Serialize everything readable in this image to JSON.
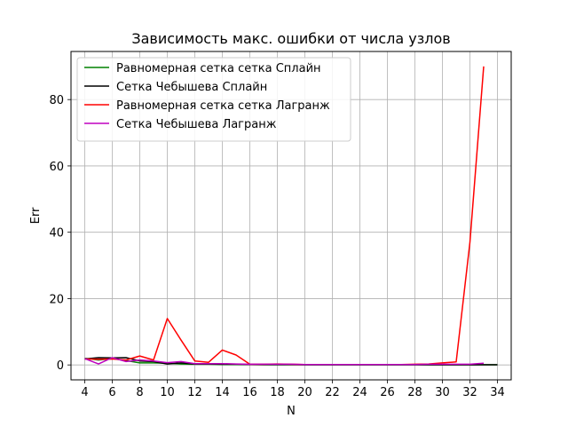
{
  "chart_data": {
    "type": "line",
    "title": "Зависимость макс. ошибки от числа узлов",
    "xlabel": "N",
    "ylabel": "Err",
    "xlim": [
      3,
      35
    ],
    "ylim": [
      -4.5,
      94.5
    ],
    "xticks": [
      4,
      6,
      8,
      10,
      12,
      14,
      16,
      18,
      20,
      22,
      24,
      26,
      28,
      30,
      32,
      34
    ],
    "yticks": [
      0,
      20,
      40,
      60,
      80
    ],
    "grid": true,
    "legend_position": "upper-left",
    "series": [
      {
        "name": "Равномерная сетка сетка Сплайн",
        "color": "#008000",
        "x": [
          4,
          5,
          6,
          7,
          8,
          9,
          10,
          11,
          12,
          13,
          14,
          15,
          16,
          17,
          18,
          19,
          20,
          21,
          22,
          23,
          24,
          25,
          26,
          27,
          28,
          29,
          30,
          31,
          32,
          33,
          34
        ],
        "y": [
          2.0,
          1.5,
          1.9,
          1.3,
          0.6,
          0.6,
          0.5,
          0.3,
          0.2,
          0.2,
          0.1,
          0.1,
          0.1,
          0.05,
          0.05,
          0.05,
          0.05,
          0.05,
          0.05,
          0.05,
          0.05,
          0.05,
          0.05,
          0.05,
          0.05,
          0.05,
          0.05,
          0.05,
          0.05,
          0.05,
          0.05
        ]
      },
      {
        "name": "Сетка Чебышева Сплайн",
        "color": "#000000",
        "x": [
          4,
          5,
          6,
          7,
          8,
          9,
          10,
          11,
          12,
          13,
          14,
          15,
          16,
          17,
          18,
          19,
          20,
          21,
          22,
          23,
          24,
          25,
          26,
          27,
          28,
          29,
          30,
          31,
          32,
          33,
          34
        ],
        "y": [
          1.8,
          2.2,
          2.1,
          2.2,
          1.2,
          1.0,
          0.3,
          0.6,
          0.3,
          0.3,
          0.2,
          0.2,
          0.1,
          0.1,
          0.1,
          0.1,
          0.05,
          0.05,
          0.05,
          0.05,
          0.05,
          0.05,
          0.05,
          0.05,
          0.05,
          0.05,
          0.05,
          0.05,
          0.05,
          0.05,
          0.05
        ]
      },
      {
        "name": "Равномерная сетка сетка Лагранж",
        "color": "#ff0000",
        "x": [
          4,
          5,
          6,
          7,
          8,
          9,
          10,
          11,
          12,
          13,
          14,
          15,
          16,
          17,
          18,
          19,
          20,
          21,
          22,
          23,
          24,
          25,
          26,
          27,
          28,
          29,
          30,
          31,
          32,
          33
        ],
        "y": [
          1.8,
          1.7,
          1.8,
          1.5,
          2.7,
          1.5,
          14.0,
          7.5,
          1.2,
          0.8,
          4.5,
          3.0,
          0.2,
          0.2,
          0.3,
          0.2,
          0.1,
          0.1,
          0.1,
          0.1,
          0.1,
          0.1,
          0.1,
          0.1,
          0.2,
          0.3,
          0.6,
          0.9,
          37.0,
          90.0
        ]
      },
      {
        "name": "Сетка Чебышева Лагранж",
        "color": "#bf00bf",
        "x": [
          4,
          5,
          6,
          7,
          8,
          9,
          10,
          11,
          12,
          13,
          14,
          15,
          16,
          17,
          18,
          19,
          20,
          21,
          22,
          23,
          24,
          25,
          26,
          27,
          28,
          29,
          30,
          31,
          32,
          33
        ],
        "y": [
          1.9,
          0.3,
          2.2,
          1.0,
          1.5,
          1.2,
          0.7,
          1.0,
          0.4,
          0.4,
          0.4,
          0.3,
          0.2,
          0.2,
          0.2,
          0.2,
          0.1,
          0.1,
          0.1,
          0.1,
          0.1,
          0.1,
          0.1,
          0.1,
          0.1,
          0.2,
          0.2,
          0.2,
          0.2,
          0.5
        ]
      }
    ]
  }
}
